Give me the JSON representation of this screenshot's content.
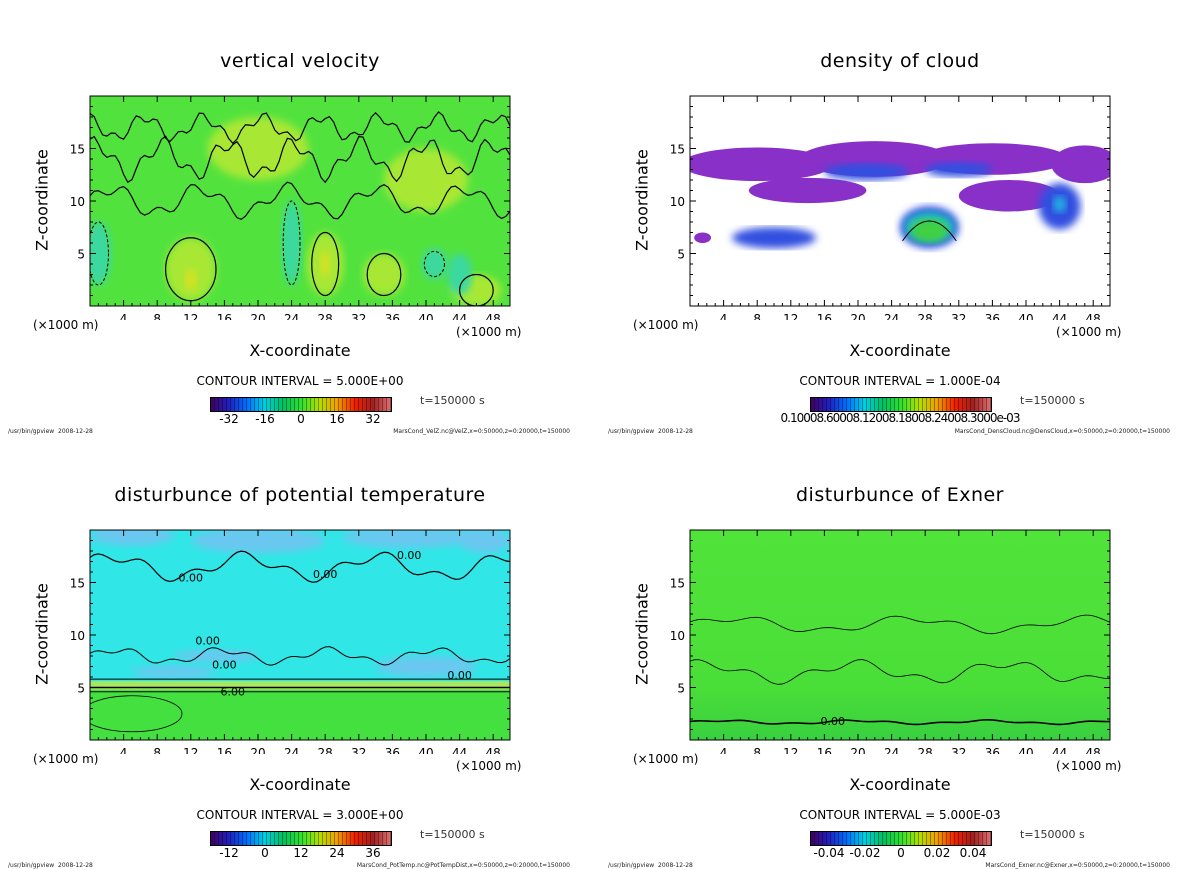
{
  "program": "/usr/bin/gpview",
  "date": "2008-12-28",
  "chart_data": [
    {
      "type": "heatmap",
      "title": "vertical velocity",
      "xlabel": "X-coordinate",
      "ylabel": "Z-coordinate",
      "x_unit_left": "(×1000 m)",
      "x_unit_right": "(×1000 m)",
      "xlim": [
        0,
        50
      ],
      "ylim": [
        0,
        20
      ],
      "xticks": [
        4,
        8,
        12,
        16,
        20,
        24,
        28,
        32,
        36,
        40,
        44,
        48
      ],
      "yticks": [
        5,
        10,
        15
      ],
      "contour_interval": "CONTOUR INTERVAL = 5.000E+00",
      "colorbar_ticks": [
        "-32",
        "-16",
        "0",
        "16",
        "32"
      ],
      "colorbar_range": [
        -40,
        40
      ],
      "time": "t=150000 s",
      "source": "MarsCond_VelZ.nc@VelZ,x=0:50000,z=0:20000,t=150000",
      "field": "velz",
      "contour_labels": []
    },
    {
      "type": "heatmap",
      "title": "density of cloud",
      "xlabel": "X-coordinate",
      "ylabel": "Z-coordinate",
      "x_unit_left": "(×1000 m)",
      "x_unit_right": "(×1000 m)",
      "xlim": [
        0,
        50
      ],
      "ylim": [
        0,
        20
      ],
      "xticks": [
        4,
        8,
        12,
        16,
        20,
        24,
        28,
        32,
        36,
        40,
        44,
        48
      ],
      "yticks": [
        5,
        10,
        15
      ],
      "contour_interval": "CONTOUR INTERVAL = 1.000E-04",
      "colorbar_label_text": "0.10008.60008.12008.18008.24008.3000e-03",
      "time": "t=150000 s",
      "source": "MarsCond_DensCloud.nc@DensCloud,x=0:50000,z=0:20000,t=150000",
      "field": "cloud",
      "contour_labels": []
    },
    {
      "type": "heatmap",
      "title": "disturbunce of potential temperature",
      "xlabel": "X-coordinate",
      "ylabel": "Z-coordinate",
      "x_unit_left": "(×1000 m)",
      "x_unit_right": "(×1000 m)",
      "xlim": [
        0,
        50
      ],
      "ylim": [
        0,
        20
      ],
      "xticks": [
        4,
        8,
        12,
        16,
        20,
        24,
        28,
        32,
        36,
        40,
        44,
        48
      ],
      "yticks": [
        5,
        10,
        15
      ],
      "contour_interval": "CONTOUR INTERVAL = 3.000E+00",
      "colorbar_ticks": [
        "-12",
        "0",
        "12",
        "24",
        "36"
      ],
      "colorbar_range": [
        -18,
        42
      ],
      "time": "t=150000 s",
      "source": "MarsCond_PotTemp.nc@PotTempDist,x=0:50000,z=0:20000,t=150000",
      "field": "ptemp",
      "contour_labels": [
        {
          "text": "0.00",
          "x": 38,
          "z": 17.6
        },
        {
          "text": "0.00",
          "x": 12,
          "z": 15.5
        },
        {
          "text": "0.00",
          "x": 28,
          "z": 15.8
        },
        {
          "text": "0.00",
          "x": 14,
          "z": 9.5
        },
        {
          "text": "0.00",
          "x": 16,
          "z": 7.2
        },
        {
          "text": "0.00",
          "x": 44,
          "z": 6.2
        },
        {
          "text": "6.00",
          "x": 17,
          "z": 4.6
        }
      ]
    },
    {
      "type": "heatmap",
      "title": "disturbunce of Exner",
      "xlabel": "X-coordinate",
      "ylabel": "Z-coordinate",
      "x_unit_left": "(×1000 m)",
      "x_unit_right": "(×1000 m)",
      "xlim": [
        0,
        50
      ],
      "ylim": [
        0,
        20
      ],
      "xticks": [
        4,
        8,
        12,
        16,
        20,
        24,
        28,
        32,
        36,
        40,
        44,
        48
      ],
      "yticks": [
        5,
        10,
        15
      ],
      "contour_interval": "CONTOUR INTERVAL = 5.000E-03",
      "colorbar_ticks": [
        "-0.04",
        "-0.02",
        "0",
        "0.02",
        "0.04"
      ],
      "colorbar_range": [
        -0.05,
        0.05
      ],
      "time": "t=150000 s",
      "source": "MarsCond_Exner.nc@Exner,x=0:50000,z=0:20000,t=150000",
      "field": "exner",
      "contour_labels": [
        {
          "text": "0.00",
          "x": 17,
          "z": 1.8
        }
      ]
    }
  ]
}
